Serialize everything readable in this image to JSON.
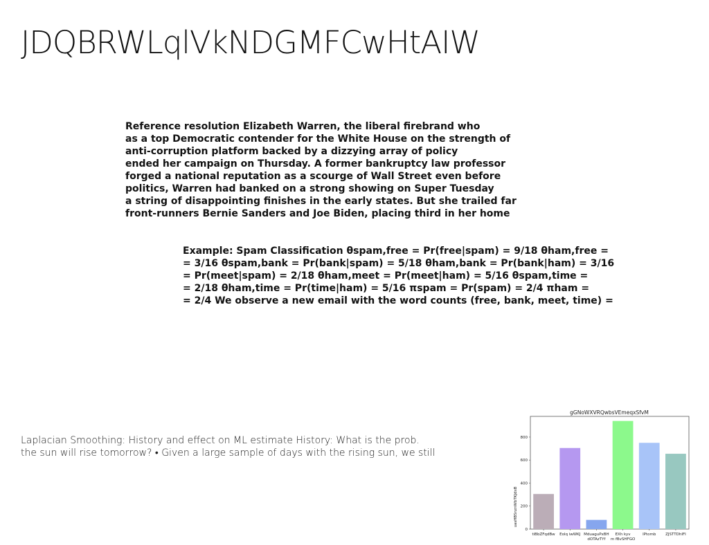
{
  "title": "JDQBRWLqlVkNDGMFCwHtAIW",
  "paragraph1": [
    "Reference resolution Elizabeth Warren, the liberal firebrand who",
    "as a top Democratic contender for the White House on the strength of",
    "anti-corruption platform backed by a dizzying array of policy",
    "ended her campaign on Thursday. A former bankruptcy law professor",
    "forged a national reputation as a scourge of Wall Street even before",
    "politics, Warren had banked on a strong showing on Super Tuesday",
    "a string of disappointing finishes in the early states. But she trailed far",
    "front-runners Bernie Sanders and Joe Biden, placing third in her home"
  ],
  "paragraph2": [
    "Example: Spam Classification θspam,free = Pr(free|spam) = 9/18 θham,free =",
    "= 3/16 θspam,bank = Pr(bank|spam) = 5/18 θham,bank = Pr(bank|ham) = 3/16",
    "= Pr(meet|spam) = 2/18 θham,meet = Pr(meet|ham) = 5/16 θspam,time =",
    "= 2/18 θham,time = Pr(time|ham) = 5/16 πspam = Pr(spam) = 2/4 πham =",
    "= 2/4 We observe a new email with the word counts (free, bank, meet, time) ="
  ],
  "laplace": [
    "Laplacian Smoothing: History and effect on ML estimate History: What is the prob.",
    "the sun will rise tomorrow? • Given a large sample of days with the rising sun, we still"
  ],
  "chart_data": {
    "type": "bar",
    "title": "gGNoWXVRQwbsVEmeqxSfvM",
    "ylabel": "uasHBSnznWbTKJdxB",
    "xlabel": "",
    "categories": [
      "tiBbZFqdBw",
      "Eolq iwWKJ",
      "MduaguPxBH dOTAzTYf",
      "EXh kyv m fBvSHFGO",
      "lPtomb",
      "ZJSTTDhIFI"
    ],
    "values": [
      305,
      705,
      80,
      940,
      750,
      655
    ],
    "colors": [
      "#bbadb7",
      "#b598f0",
      "#86a6ee",
      "#8cf98c",
      "#a8c4f8",
      "#98c8c0"
    ],
    "ylim": [
      0,
      980
    ],
    "yticks": [
      0,
      200,
      400,
      600,
      800
    ],
    "grid": false
  }
}
